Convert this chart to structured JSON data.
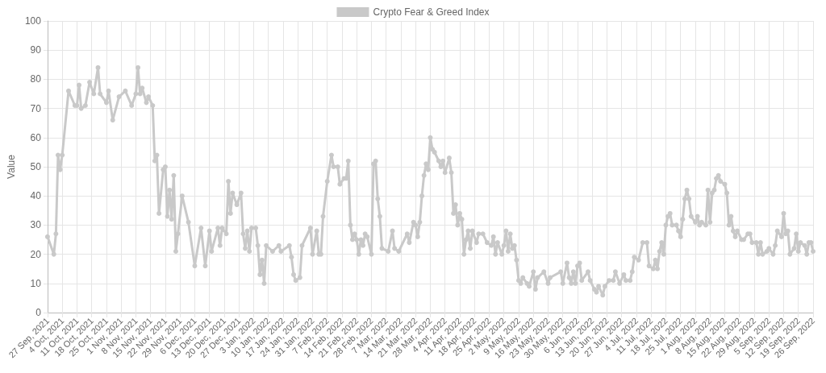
{
  "chart_data": {
    "type": "line",
    "ylabel": "Value",
    "legend": "top",
    "grid": true,
    "marker": "circle",
    "line_style": "solid",
    "ylim": [
      0,
      100
    ],
    "yticks": [
      0,
      10,
      20,
      30,
      40,
      50,
      60,
      70,
      80,
      90,
      100
    ],
    "xlim": [
      "2021-09-27",
      "2022-09-26"
    ],
    "xticks": [
      {
        "value": "2021-09-27",
        "label": "27 Sep, 2021"
      },
      {
        "value": "2021-10-04",
        "label": "4 Oct, 2021"
      },
      {
        "value": "2021-10-11",
        "label": "11 Oct, 2021"
      },
      {
        "value": "2021-10-18",
        "label": "18 Oct, 2021"
      },
      {
        "value": "2021-10-25",
        "label": "25 Oct, 2021"
      },
      {
        "value": "2021-11-01",
        "label": "1 Nov, 2021"
      },
      {
        "value": "2021-11-08",
        "label": "8 Nov, 2021"
      },
      {
        "value": "2021-11-15",
        "label": "15 Nov, 2021"
      },
      {
        "value": "2021-11-22",
        "label": "22 Nov, 2021"
      },
      {
        "value": "2021-11-29",
        "label": "29 Nov, 2021"
      },
      {
        "value": "2021-12-06",
        "label": "6 Dec, 2021"
      },
      {
        "value": "2021-12-13",
        "label": "13 Dec, 2021"
      },
      {
        "value": "2021-12-20",
        "label": "20 Dec, 2021"
      },
      {
        "value": "2021-12-27",
        "label": "27 Dec, 2021"
      },
      {
        "value": "2022-01-03",
        "label": "3 Jan, 2022"
      },
      {
        "value": "2022-01-10",
        "label": "10 Jan, 2022"
      },
      {
        "value": "2022-01-17",
        "label": "17 Jan, 2022"
      },
      {
        "value": "2022-01-24",
        "label": "24 Jan, 2022"
      },
      {
        "value": "2022-01-31",
        "label": "31 Jan, 2022"
      },
      {
        "value": "2022-02-07",
        "label": "7 Feb, 2022"
      },
      {
        "value": "2022-02-14",
        "label": "14 Feb, 2022"
      },
      {
        "value": "2022-02-21",
        "label": "21 Feb, 2022"
      },
      {
        "value": "2022-02-28",
        "label": "28 Feb, 2022"
      },
      {
        "value": "2022-03-07",
        "label": "7 Mar, 2022"
      },
      {
        "value": "2022-03-14",
        "label": "14 Mar, 2022"
      },
      {
        "value": "2022-03-21",
        "label": "21 Mar, 2022"
      },
      {
        "value": "2022-03-28",
        "label": "28 Mar, 2022"
      },
      {
        "value": "2022-04-04",
        "label": "4 Apr, 2022"
      },
      {
        "value": "2022-04-11",
        "label": "11 Apr, 2022"
      },
      {
        "value": "2022-04-18",
        "label": "18 Apr, 2022"
      },
      {
        "value": "2022-04-25",
        "label": "25 Apr, 2022"
      },
      {
        "value": "2022-05-02",
        "label": "2 May, 2022"
      },
      {
        "value": "2022-05-09",
        "label": "9 May, 2022"
      },
      {
        "value": "2022-05-16",
        "label": "16 May, 2022"
      },
      {
        "value": "2022-05-23",
        "label": "23 May, 2022"
      },
      {
        "value": "2022-05-30",
        "label": "30 May, 2022"
      },
      {
        "value": "2022-06-06",
        "label": "6 Jun, 2022"
      },
      {
        "value": "2022-06-13",
        "label": "13 Jun, 2022"
      },
      {
        "value": "2022-06-20",
        "label": "20 Jun, 2022"
      },
      {
        "value": "2022-06-27",
        "label": "27 Jun, 2022"
      },
      {
        "value": "2022-07-04",
        "label": "4 Jul, 2022"
      },
      {
        "value": "2022-07-11",
        "label": "11 Jul, 2022"
      },
      {
        "value": "2022-07-18",
        "label": "18 Jul, 2022"
      },
      {
        "value": "2022-07-25",
        "label": "25 Jul, 2022"
      },
      {
        "value": "2022-08-01",
        "label": "1 Aug, 2022"
      },
      {
        "value": "2022-08-08",
        "label": "8 Aug, 2022"
      },
      {
        "value": "2022-08-15",
        "label": "15 Aug, 2022"
      },
      {
        "value": "2022-08-22",
        "label": "22 Aug, 2022"
      },
      {
        "value": "2022-08-29",
        "label": "29 Aug, 2022"
      },
      {
        "value": "2022-09-05",
        "label": "5 Sep, 2022"
      },
      {
        "value": "2022-09-12",
        "label": "12 Sep, 2022"
      },
      {
        "value": "2022-09-19",
        "label": "19 Sep, 2022"
      },
      {
        "value": "2022-09-26",
        "label": "26 Sep, 2022"
      }
    ],
    "x": [
      "2021-09-27",
      "2021-09-30",
      "2021-10-01",
      "2021-10-02",
      "2021-10-03",
      "2021-10-04",
      "2021-10-07",
      "2021-10-10",
      "2021-10-11",
      "2021-10-12",
      "2021-10-13",
      "2021-10-15",
      "2021-10-17",
      "2021-10-19",
      "2021-10-21",
      "2021-10-22",
      "2021-10-25",
      "2021-10-26",
      "2021-10-28",
      "2021-10-31",
      "2021-11-03",
      "2021-11-06",
      "2021-11-08",
      "2021-11-09",
      "2021-11-10",
      "2021-11-11",
      "2021-11-13",
      "2021-11-14",
      "2021-11-16",
      "2021-11-17",
      "2021-11-18",
      "2021-11-19",
      "2021-11-21",
      "2021-11-22",
      "2021-11-23",
      "2021-11-24",
      "2021-11-25",
      "2021-11-26",
      "2021-11-27",
      "2021-11-28",
      "2021-11-30",
      "2021-12-03",
      "2021-12-06",
      "2021-12-09",
      "2021-12-11",
      "2021-12-13",
      "2021-12-14",
      "2021-12-17",
      "2021-12-18",
      "2021-12-19",
      "2021-12-21",
      "2021-12-22",
      "2021-12-23",
      "2021-12-24",
      "2021-12-26",
      "2021-12-28",
      "2021-12-29",
      "2021-12-30",
      "2021-12-31",
      "2022-01-01",
      "2022-01-02",
      "2022-01-04",
      "2022-01-05",
      "2022-01-06",
      "2022-01-07",
      "2022-01-08",
      "2022-01-09",
      "2022-01-12",
      "2022-01-15",
      "2022-01-16",
      "2022-01-20",
      "2022-01-21",
      "2022-01-22",
      "2022-01-23",
      "2022-01-25",
      "2022-01-26",
      "2022-01-30",
      "2022-01-31",
      "2022-02-02",
      "2022-02-03",
      "2022-02-04",
      "2022-02-05",
      "2022-02-07",
      "2022-02-09",
      "2022-02-10",
      "2022-02-12",
      "2022-02-13",
      "2022-02-15",
      "2022-02-16",
      "2022-02-17",
      "2022-02-18",
      "2022-02-19",
      "2022-02-20",
      "2022-02-21",
      "2022-02-22",
      "2022-02-23",
      "2022-02-24",
      "2022-02-25",
      "2022-02-26",
      "2022-02-28",
      "2022-03-01",
      "2022-03-02",
      "2022-03-03",
      "2022-03-04",
      "2022-03-05",
      "2022-03-08",
      "2022-03-10",
      "2022-03-11",
      "2022-03-13",
      "2022-03-17",
      "2022-03-18",
      "2022-03-20",
      "2022-03-21",
      "2022-03-22",
      "2022-03-23",
      "2022-03-24",
      "2022-03-25",
      "2022-03-26",
      "2022-03-27",
      "2022-03-28",
      "2022-03-29",
      "2022-03-30",
      "2022-04-01",
      "2022-04-02",
      "2022-04-03",
      "2022-04-04",
      "2022-04-06",
      "2022-04-07",
      "2022-04-08",
      "2022-04-09",
      "2022-04-10",
      "2022-04-11",
      "2022-04-12",
      "2022-04-13",
      "2022-04-14",
      "2022-04-15",
      "2022-04-16",
      "2022-04-17",
      "2022-04-19",
      "2022-04-20",
      "2022-04-22",
      "2022-04-24",
      "2022-04-26",
      "2022-04-27",
      "2022-04-28",
      "2022-04-29",
      "2022-05-01",
      "2022-05-02",
      "2022-05-03",
      "2022-05-04",
      "2022-05-05",
      "2022-05-06",
      "2022-05-07",
      "2022-05-08",
      "2022-05-09",
      "2022-05-10",
      "2022-05-11",
      "2022-05-13",
      "2022-05-14",
      "2022-05-16",
      "2022-05-17",
      "2022-05-18",
      "2022-05-21",
      "2022-05-23",
      "2022-05-24",
      "2022-05-29",
      "2022-05-30",
      "2022-06-01",
      "2022-06-02",
      "2022-06-03",
      "2022-06-04",
      "2022-06-05",
      "2022-06-06",
      "2022-06-07",
      "2022-06-08",
      "2022-06-11",
      "2022-06-12",
      "2022-06-14",
      "2022-06-15",
      "2022-06-16",
      "2022-06-18",
      "2022-06-19",
      "2022-06-21",
      "2022-06-23",
      "2022-06-24",
      "2022-06-26",
      "2022-06-28",
      "2022-06-29",
      "2022-07-01",
      "2022-07-02",
      "2022-07-03",
      "2022-07-05",
      "2022-07-07",
      "2022-07-09",
      "2022-07-10",
      "2022-07-12",
      "2022-07-13",
      "2022-07-14",
      "2022-07-15",
      "2022-07-16",
      "2022-07-17",
      "2022-07-18",
      "2022-07-19",
      "2022-07-20",
      "2022-07-21",
      "2022-07-23",
      "2022-07-24",
      "2022-07-25",
      "2022-07-26",
      "2022-07-27",
      "2022-07-28",
      "2022-07-29",
      "2022-07-30",
      "2022-08-01",
      "2022-08-02",
      "2022-08-03",
      "2022-08-04",
      "2022-08-06",
      "2022-08-07",
      "2022-08-08",
      "2022-08-09",
      "2022-08-10",
      "2022-08-11",
      "2022-08-12",
      "2022-08-13",
      "2022-08-15",
      "2022-08-16",
      "2022-08-17",
      "2022-08-18",
      "2022-08-19",
      "2022-08-20",
      "2022-08-21",
      "2022-08-23",
      "2022-08-24",
      "2022-08-26",
      "2022-08-27",
      "2022-08-28",
      "2022-08-30",
      "2022-08-31",
      "2022-09-01",
      "2022-09-02",
      "2022-09-04",
      "2022-09-05",
      "2022-09-07",
      "2022-09-08",
      "2022-09-09",
      "2022-09-11",
      "2022-09-12",
      "2022-09-13",
      "2022-09-14",
      "2022-09-15",
      "2022-09-17",
      "2022-09-18",
      "2022-09-19",
      "2022-09-20",
      "2022-09-22",
      "2022-09-23",
      "2022-09-24",
      "2022-09-25",
      "2022-09-26"
    ],
    "series": [
      {
        "name": "Crypto Fear & Greed Index",
        "color": "#c9c9c9",
        "values": [
          26,
          20,
          27,
          54,
          49,
          54,
          76,
          71,
          71,
          78,
          70,
          71,
          79,
          75,
          84,
          75,
          72,
          76,
          66,
          74,
          76,
          71,
          75,
          84,
          75,
          77,
          72,
          74,
          71,
          52,
          54,
          34,
          49,
          50,
          33,
          42,
          32,
          47,
          21,
          27,
          40,
          31,
          16,
          29,
          16,
          28,
          21,
          29,
          23,
          29,
          27,
          45,
          34,
          41,
          37,
          41,
          27,
          22,
          28,
          21,
          29,
          29,
          23,
          13,
          18,
          10,
          23,
          21,
          23,
          21,
          23,
          19,
          13,
          11,
          12,
          23,
          29,
          20,
          28,
          20,
          20,
          33,
          45,
          54,
          50,
          50,
          44,
          46,
          46,
          52,
          30,
          25,
          27,
          25,
          20,
          25,
          23,
          27,
          26,
          20,
          51,
          52,
          39,
          33,
          22,
          21,
          28,
          22,
          21,
          27,
          24,
          31,
          30,
          26,
          31,
          40,
          47,
          51,
          49,
          60,
          56,
          55,
          52,
          50,
          52,
          48,
          53,
          48,
          34,
          37,
          30,
          34,
          32,
          20,
          25,
          28,
          22,
          28,
          24,
          27,
          27,
          24,
          23,
          26,
          20,
          24,
          20,
          23,
          28,
          21,
          27,
          22,
          23,
          18,
          11,
          10,
          12,
          10,
          9,
          14,
          8,
          12,
          14,
          10,
          12,
          14,
          10,
          17,
          12,
          10,
          14,
          10,
          16,
          17,
          11,
          14,
          11,
          8,
          7,
          9,
          6,
          9,
          11,
          11,
          14,
          10,
          13,
          11,
          11,
          14,
          19,
          18,
          24,
          24,
          16,
          15,
          18,
          15,
          21,
          24,
          20,
          30,
          33,
          34,
          30,
          30,
          28,
          26,
          32,
          39,
          42,
          39,
          33,
          31,
          33,
          30,
          31,
          30,
          42,
          31,
          41,
          42,
          46,
          47,
          45,
          44,
          41,
          30,
          33,
          28,
          26,
          28,
          25,
          25,
          27,
          27,
          24,
          24,
          20,
          24,
          20,
          21,
          22,
          20,
          23,
          28,
          26,
          34,
          27,
          28,
          20,
          22,
          27,
          21,
          24,
          23,
          20,
          24,
          24,
          21
        ]
      }
    ]
  }
}
